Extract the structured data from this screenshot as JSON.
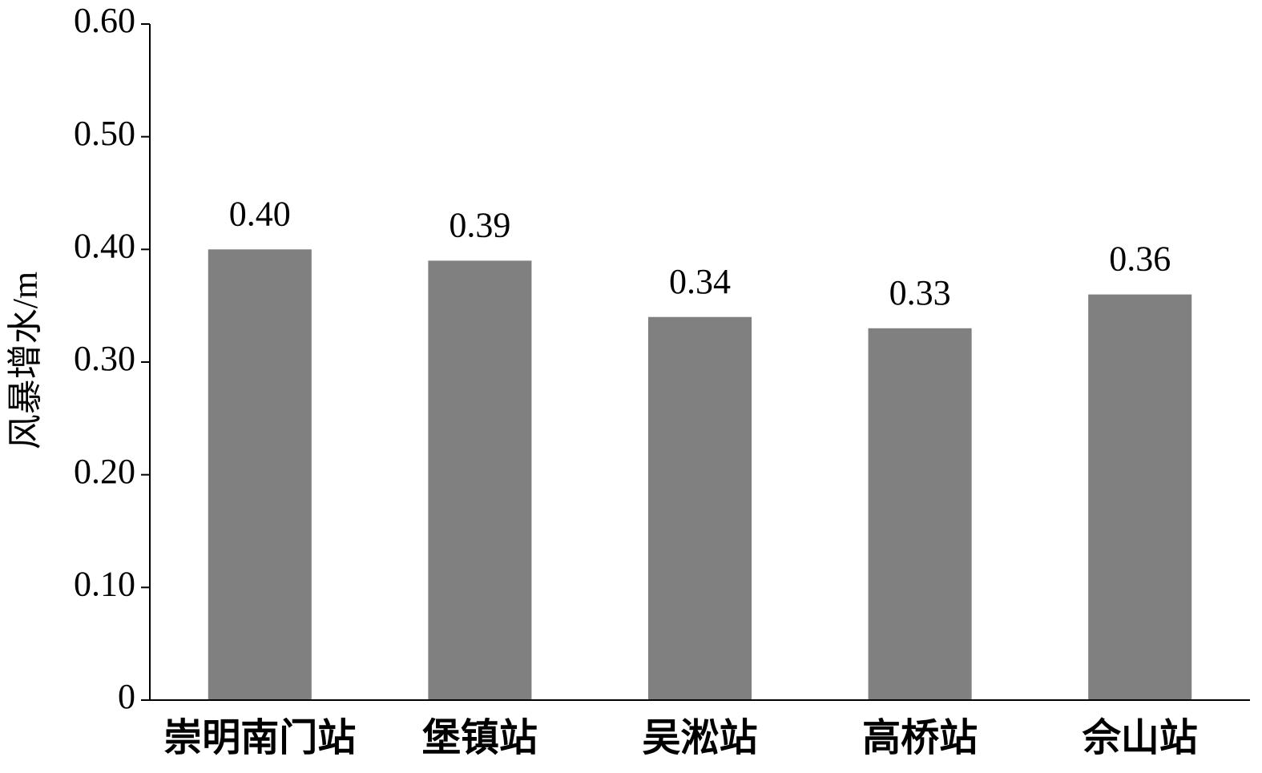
{
  "chart_data": {
    "type": "bar",
    "y_label": "风暴增水/m",
    "categories": [
      "崇明南门站",
      "堡镇站",
      "吴淞站",
      "高桥站",
      "佘山站"
    ],
    "values": [
      0.4,
      0.39,
      0.34,
      0.33,
      0.36
    ],
    "value_labels": [
      "0.40",
      "0.39",
      "0.34",
      "0.33",
      "0.36"
    ],
    "color": "#808080",
    "ylim": [
      0,
      0.6
    ],
    "yticks": [
      0,
      {
        "value": 0.1,
        "label": "0.10"
      },
      {
        "value": 0.2,
        "label": "0.20"
      },
      {
        "value": 0.3,
        "label": "0.30"
      },
      {
        "value": 0.4,
        "label": "0.40"
      },
      {
        "value": 0.5,
        "label": "0.50"
      },
      {
        "value": 0.6,
        "label": "0.60"
      }
    ],
    "grid": false
  }
}
